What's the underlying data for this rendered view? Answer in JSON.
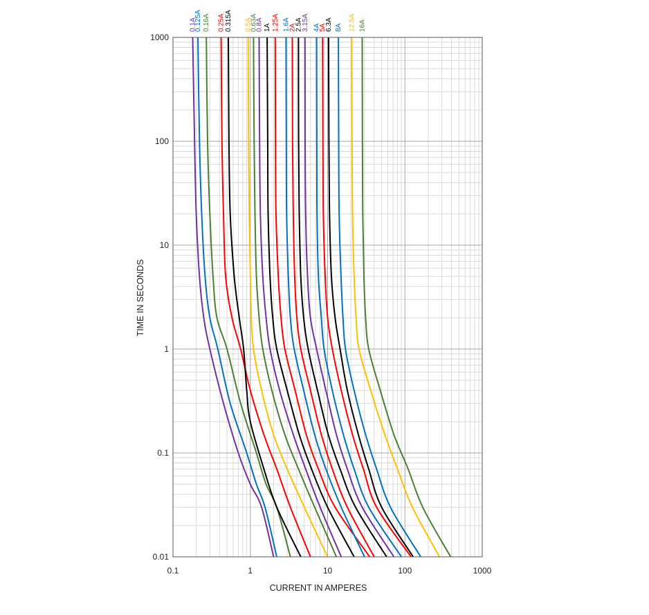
{
  "chart_data": {
    "type": "line",
    "title": "",
    "xlabel": "CURRENT  IN AMPERES",
    "ylabel": "TIME  IN  SECONDS",
    "x_scale": "log",
    "y_scale": "log",
    "xlim": [
      0.1,
      1000
    ],
    "ylim": [
      0.01,
      1000
    ],
    "x_ticks": [
      "0.1",
      "1",
      "10",
      "100",
      "1000"
    ],
    "y_ticks": [
      "0.01",
      "0.1",
      "1",
      "10",
      "100",
      "1000"
    ],
    "grid": true,
    "legend": "labels above each curve at top",
    "series": [
      {
        "name": "0.1A",
        "color": "#7030a0",
        "points": [
          [
            0.18,
            1000
          ],
          [
            0.19,
            100
          ],
          [
            0.2,
            20
          ],
          [
            0.22,
            5
          ],
          [
            0.25,
            2
          ],
          [
            0.3,
            1
          ],
          [
            0.45,
            0.3
          ],
          [
            0.7,
            0.1
          ],
          [
            1.0,
            0.05
          ],
          [
            1.4,
            0.03
          ],
          [
            2.0,
            0.01
          ]
        ]
      },
      {
        "name": "0.125A",
        "color": "#0070c0",
        "points": [
          [
            0.21,
            1000
          ],
          [
            0.22,
            100
          ],
          [
            0.235,
            20
          ],
          [
            0.26,
            5
          ],
          [
            0.3,
            2
          ],
          [
            0.38,
            1
          ],
          [
            0.55,
            0.3
          ],
          [
            0.9,
            0.1
          ],
          [
            1.2,
            0.05
          ],
          [
            1.55,
            0.03
          ],
          [
            2.2,
            0.01
          ]
        ]
      },
      {
        "name": "0.16A",
        "color": "#4a7f33",
        "points": [
          [
            0.27,
            1000
          ],
          [
            0.28,
            100
          ],
          [
            0.3,
            20
          ],
          [
            0.33,
            5
          ],
          [
            0.37,
            2
          ],
          [
            0.5,
            1
          ],
          [
            0.75,
            0.3
          ],
          [
            1.2,
            0.1
          ],
          [
            1.6,
            0.05
          ],
          [
            2.2,
            0.03
          ],
          [
            3.3,
            0.01
          ]
        ]
      },
      {
        "name": "0.25A",
        "color": "#ff0000",
        "points": [
          [
            0.42,
            1000
          ],
          [
            0.43,
            100
          ],
          [
            0.45,
            20
          ],
          [
            0.48,
            5
          ],
          [
            0.58,
            2
          ],
          [
            0.75,
            1
          ],
          [
            1.0,
            0.4
          ],
          [
            1.5,
            0.15
          ],
          [
            2.2,
            0.07
          ],
          [
            3.3,
            0.03
          ],
          [
            6.0,
            0.01
          ]
        ]
      },
      {
        "name": "0.315A",
        "color": "#000000",
        "points": [
          [
            0.52,
            1000
          ],
          [
            0.53,
            100
          ],
          [
            0.55,
            20
          ],
          [
            0.62,
            5
          ],
          [
            0.72,
            2
          ],
          [
            0.82,
            1
          ],
          [
            0.9,
            0.4
          ],
          [
            1.0,
            0.2
          ],
          [
            1.5,
            0.07
          ],
          [
            2.2,
            0.03
          ],
          [
            4.5,
            0.01
          ]
        ]
      },
      {
        "name": "0.5A",
        "color": "#ffc000",
        "points": [
          [
            0.94,
            1000
          ],
          [
            0.95,
            100
          ],
          [
            0.97,
            20
          ],
          [
            1.0,
            5
          ],
          [
            1.03,
            2
          ],
          [
            1.1,
            1
          ],
          [
            1.4,
            0.4
          ],
          [
            2.0,
            0.15
          ],
          [
            3.0,
            0.07
          ],
          [
            5.0,
            0.03
          ],
          [
            10.0,
            0.01
          ]
        ]
      },
      {
        "name": "0.63A",
        "color": "#4a7f33",
        "points": [
          [
            1.1,
            1000
          ],
          [
            1.12,
            100
          ],
          [
            1.15,
            20
          ],
          [
            1.2,
            5
          ],
          [
            1.3,
            2
          ],
          [
            1.45,
            1
          ],
          [
            1.9,
            0.4
          ],
          [
            2.8,
            0.15
          ],
          [
            4.2,
            0.07
          ],
          [
            6.8,
            0.03
          ],
          [
            13.0,
            0.01
          ]
        ]
      },
      {
        "name": "0.8A",
        "color": "#7030a0",
        "points": [
          [
            1.3,
            1000
          ],
          [
            1.32,
            100
          ],
          [
            1.35,
            20
          ],
          [
            1.45,
            5
          ],
          [
            1.6,
            2
          ],
          [
            1.8,
            1
          ],
          [
            2.4,
            0.4
          ],
          [
            3.6,
            0.15
          ],
          [
            5.2,
            0.07
          ],
          [
            8.0,
            0.03
          ],
          [
            15.0,
            0.01
          ]
        ]
      },
      {
        "name": "1A",
        "color": "#000000",
        "points": [
          [
            1.65,
            1000
          ],
          [
            1.68,
            100
          ],
          [
            1.7,
            20
          ],
          [
            1.8,
            5
          ],
          [
            1.95,
            2
          ],
          [
            2.2,
            1
          ],
          [
            3.0,
            0.4
          ],
          [
            4.3,
            0.15
          ],
          [
            6.2,
            0.07
          ],
          [
            10.0,
            0.03
          ],
          [
            22.0,
            0.01
          ]
        ]
      },
      {
        "name": "1.25A",
        "color": "#ff0000",
        "points": [
          [
            2.1,
            1000
          ],
          [
            2.12,
            100
          ],
          [
            2.15,
            20
          ],
          [
            2.3,
            5
          ],
          [
            2.5,
            2
          ],
          [
            2.8,
            1
          ],
          [
            3.8,
            0.4
          ],
          [
            5.3,
            0.15
          ],
          [
            7.6,
            0.07
          ],
          [
            12.5,
            0.03
          ],
          [
            35.0,
            0.01
          ]
        ]
      },
      {
        "name": "1.6A",
        "color": "#0070c0",
        "points": [
          [
            2.9,
            1000
          ],
          [
            2.92,
            100
          ],
          [
            2.95,
            20
          ],
          [
            3.1,
            5
          ],
          [
            3.3,
            2
          ],
          [
            3.7,
            1
          ],
          [
            4.9,
            0.4
          ],
          [
            6.8,
            0.15
          ],
          [
            9.5,
            0.07
          ],
          [
            15.0,
            0.03
          ],
          [
            30.0,
            0.01
          ]
        ]
      },
      {
        "name": "2A",
        "color": "#ff0000",
        "points": [
          [
            3.5,
            1000
          ],
          [
            3.52,
            100
          ],
          [
            3.6,
            20
          ],
          [
            3.75,
            5
          ],
          [
            4.0,
            2
          ],
          [
            4.5,
            1
          ],
          [
            6.0,
            0.4
          ],
          [
            8.3,
            0.15
          ],
          [
            11.5,
            0.07
          ],
          [
            18.0,
            0.03
          ],
          [
            40.0,
            0.01
          ]
        ]
      },
      {
        "name": "2.5A",
        "color": "#000000",
        "points": [
          [
            4.2,
            1000
          ],
          [
            4.22,
            100
          ],
          [
            4.3,
            20
          ],
          [
            4.5,
            5
          ],
          [
            4.9,
            2
          ],
          [
            5.6,
            1
          ],
          [
            7.4,
            0.4
          ],
          [
            10.2,
            0.15
          ],
          [
            14.5,
            0.07
          ],
          [
            23.0,
            0.03
          ],
          [
            58.0,
            0.01
          ]
        ]
      },
      {
        "name": "3.15A",
        "color": "#7030a0",
        "points": [
          [
            5.1,
            1000
          ],
          [
            5.12,
            100
          ],
          [
            5.2,
            20
          ],
          [
            5.5,
            5
          ],
          [
            6.0,
            2
          ],
          [
            7.2,
            1
          ],
          [
            9.5,
            0.4
          ],
          [
            13.0,
            0.15
          ],
          [
            18.0,
            0.07
          ],
          [
            28.0,
            0.03
          ],
          [
            72.0,
            0.01
          ]
        ]
      },
      {
        "name": "4A",
        "color": "#0070c0",
        "points": [
          [
            7.2,
            1000
          ],
          [
            7.25,
            100
          ],
          [
            7.3,
            20
          ],
          [
            7.6,
            5
          ],
          [
            8.3,
            2
          ],
          [
            9.0,
            1
          ],
          [
            11.5,
            0.4
          ],
          [
            16.0,
            0.15
          ],
          [
            22.0,
            0.07
          ],
          [
            34.0,
            0.03
          ],
          [
            90.0,
            0.01
          ]
        ]
      },
      {
        "name": "5A",
        "color": "#ff0000",
        "points": [
          [
            8.6,
            1000
          ],
          [
            8.7,
            100
          ],
          [
            8.8,
            20
          ],
          [
            9.3,
            5
          ],
          [
            10.0,
            2
          ],
          [
            11.5,
            1
          ],
          [
            15.0,
            0.4
          ],
          [
            21.0,
            0.15
          ],
          [
            29.0,
            0.07
          ],
          [
            43.0,
            0.03
          ],
          [
            120.0,
            0.01
          ]
        ]
      },
      {
        "name": "6.3A",
        "color": "#000000",
        "points": [
          [
            10.3,
            1000
          ],
          [
            10.4,
            100
          ],
          [
            10.6,
            20
          ],
          [
            11.2,
            5
          ],
          [
            12.5,
            2
          ],
          [
            14.5,
            1
          ],
          [
            18.0,
            0.4
          ],
          [
            25.0,
            0.15
          ],
          [
            34.0,
            0.07
          ],
          [
            50.0,
            0.03
          ],
          [
            128.0,
            0.01
          ]
        ]
      },
      {
        "name": "8A",
        "color": "#0070c0",
        "points": [
          [
            13.8,
            1000
          ],
          [
            13.9,
            100
          ],
          [
            14.1,
            20
          ],
          [
            14.9,
            5
          ],
          [
            15.8,
            2
          ],
          [
            17.0,
            1
          ],
          [
            22.0,
            0.4
          ],
          [
            31.0,
            0.15
          ],
          [
            43.0,
            0.07
          ],
          [
            65.0,
            0.03
          ],
          [
            160.0,
            0.01
          ]
        ]
      },
      {
        "name": "12.5A",
        "color": "#ffc000",
        "points": [
          [
            20.5,
            1000
          ],
          [
            20.7,
            100
          ],
          [
            21.0,
            20
          ],
          [
            22.0,
            5
          ],
          [
            23.3,
            2
          ],
          [
            25.5,
            1
          ],
          [
            36.0,
            0.4
          ],
          [
            55.0,
            0.15
          ],
          [
            80.0,
            0.07
          ],
          [
            125.0,
            0.03
          ],
          [
            280.0,
            0.01
          ]
        ]
      },
      {
        "name": "16A",
        "color": "#4a7f33",
        "points": [
          [
            28.0,
            1000
          ],
          [
            28.2,
            100
          ],
          [
            28.5,
            20
          ],
          [
            29.5,
            5
          ],
          [
            31.0,
            2
          ],
          [
            34.0,
            1
          ],
          [
            48.0,
            0.4
          ],
          [
            72.0,
            0.15
          ],
          [
            110.0,
            0.07
          ],
          [
            170.0,
            0.03
          ],
          [
            390.0,
            0.01
          ]
        ]
      }
    ]
  }
}
